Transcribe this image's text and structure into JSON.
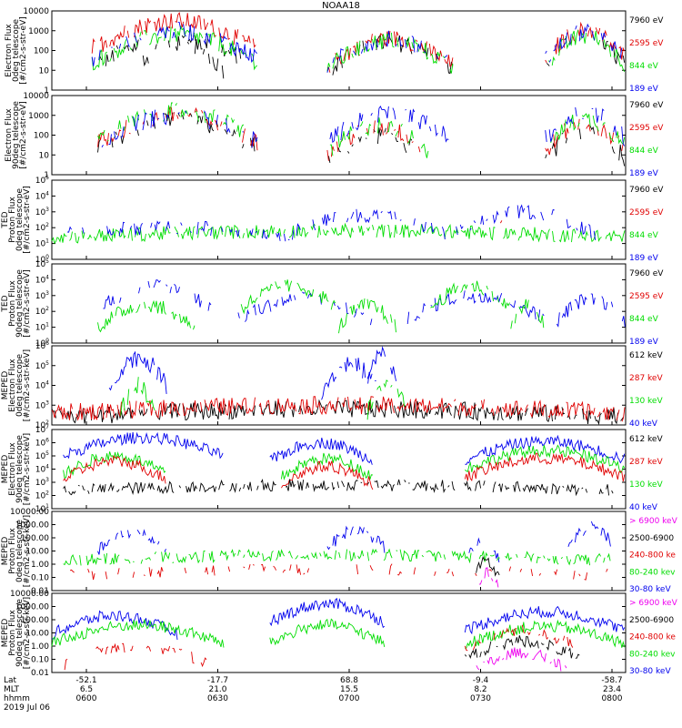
{
  "title": "NOAA18",
  "colors": {
    "c0": "#000000",
    "c1": "#e00000",
    "c2": "#00dd00",
    "c3": "#0000ee",
    "c4": "#ee00ee"
  },
  "chart_data": {
    "type": "line",
    "x_range": [
      "2019-07-06 06:00",
      "2019-07-06 08:00"
    ],
    "x_tick_times": [
      "0600",
      "0630",
      "0700",
      "0730",
      "0800"
    ],
    "panels": [
      {
        "id": "p1",
        "ylabel": [
          "Electron Flux",
          "0deg telescope",
          "[#/cm2-s-str-eV]"
        ],
        "yscale": "log",
        "ylim": [
          1,
          10000
        ],
        "yticks": [
          "10000",
          "1000",
          "100",
          "10",
          "1"
        ],
        "legend": [
          {
            "label": "7960 eV",
            "color": "c0"
          },
          {
            "label": "2595 eV",
            "color": "c1"
          },
          {
            "label": "844 eV",
            "color": "c2"
          },
          {
            "label": "189 eV",
            "color": "c3"
          }
        ],
        "series": [
          {
            "color": "c0",
            "segments": [
              [
                0.07,
                0.36,
                1.8
              ],
              [
                0.14,
                0.3,
                1.6
              ],
              [
                0.48,
                0.7,
                1.6
              ],
              [
                0.86,
                1.0,
                1.8
              ]
            ],
            "dens": 0.5
          },
          {
            "color": "c1",
            "segments": [
              [
                0.07,
                0.36,
                2.7
              ],
              [
                0.48,
                0.7,
                1.8
              ],
              [
                0.86,
                1.0,
                2.2
              ]
            ],
            "dens": 0.8
          },
          {
            "color": "c2",
            "segments": [
              [
                0.07,
                0.36,
                2.0
              ],
              [
                0.48,
                0.7,
                1.7
              ],
              [
                0.86,
                1.0,
                1.9
              ]
            ],
            "dens": 0.8
          },
          {
            "color": "c3",
            "segments": [
              [
                0.07,
                0.36,
                2.2
              ],
              [
                0.48,
                0.7,
                1.8
              ],
              [
                0.86,
                1.0,
                2.1
              ]
            ],
            "dens": 0.7
          }
        ]
      },
      {
        "id": "p2",
        "ylabel": [
          "Electron Flux",
          "90deg telescope",
          "[#/cm2-s-str-eV]"
        ],
        "yscale": "log",
        "ylim": [
          1,
          10000
        ],
        "yticks": [
          "10000",
          "1000",
          "100",
          "10",
          "1"
        ],
        "legend": [
          {
            "label": "7960 eV",
            "color": "c0"
          },
          {
            "label": "2595 eV",
            "color": "c1"
          },
          {
            "label": "844 eV",
            "color": "c2"
          },
          {
            "label": "189 eV",
            "color": "c3"
          }
        ],
        "series": [
          {
            "color": "c0",
            "segments": [
              [
                0.08,
                0.36,
                1.9
              ],
              [
                0.48,
                0.66,
                1.2
              ],
              [
                0.86,
                1.0,
                1.4
              ]
            ],
            "dens": 0.6
          },
          {
            "color": "c1",
            "segments": [
              [
                0.08,
                0.36,
                2.2
              ],
              [
                0.48,
                0.66,
                1.6
              ],
              [
                0.86,
                1.0,
                1.8
              ]
            ],
            "dens": 0.7
          },
          {
            "color": "c2",
            "segments": [
              [
                0.08,
                0.36,
                2.4
              ],
              [
                0.48,
                0.66,
                1.7
              ],
              [
                0.86,
                1.0,
                2.0
              ]
            ],
            "dens": 0.7
          },
          {
            "color": "c3",
            "segments": [
              [
                0.08,
                0.36,
                2.2
              ],
              [
                0.48,
                0.7,
                2.3
              ],
              [
                0.86,
                1.0,
                2.4
              ]
            ],
            "dens": 0.6
          }
        ]
      },
      {
        "id": "p3",
        "ylabel": [
          "TED",
          "Proton Flux",
          "0deg telescope",
          "[#/cm2-s-str-eV]"
        ],
        "yscale": "log",
        "ylim": [
          1,
          100000
        ],
        "yticks": [
          "10^5",
          "10^4",
          "10^3",
          "10^2",
          "10^1",
          "10^0"
        ],
        "legend": [
          {
            "label": "7960 eV",
            "color": "c0"
          },
          {
            "label": "2595 eV",
            "color": "c1"
          },
          {
            "label": "844 eV",
            "color": "c2"
          },
          {
            "label": "189 eV",
            "color": "c3"
          }
        ],
        "series": [
          {
            "color": "c2",
            "segments": [
              [
                0.0,
                1.0,
                1.4
              ]
            ],
            "dens": 0.9
          },
          {
            "color": "c3",
            "segments": [
              [
                0.02,
                0.4,
                1.6
              ],
              [
                0.4,
                0.7,
                2.0
              ],
              [
                0.7,
                0.95,
                2.2
              ]
            ],
            "dens": 0.6
          },
          {
            "color": "c1",
            "segments": [
              [
                0.77,
                0.84,
                1.8
              ]
            ],
            "dens": 0.2
          }
        ]
      },
      {
        "id": "p4",
        "ylabel": [
          "TED",
          "Proton Flux",
          "90deg telescope",
          "[#/cm2-s-str-eV]"
        ],
        "yscale": "log",
        "ylim": [
          1,
          100000
        ],
        "yticks": [
          "10^5",
          "10^4",
          "10^3",
          "10^2",
          "10^1",
          "10^0"
        ],
        "legend": [
          {
            "label": "7960 eV",
            "color": "c0"
          },
          {
            "label": "2595 eV",
            "color": "c1"
          },
          {
            "label": "844 eV",
            "color": "c2"
          },
          {
            "label": "189 eV",
            "color": "c3"
          }
        ],
        "series": [
          {
            "color": "c3",
            "segments": [
              [
                0.08,
                0.28,
                2.8
              ],
              [
                0.32,
                0.56,
                2.0
              ],
              [
                0.62,
                0.86,
                2.2
              ],
              [
                0.88,
                1.0,
                2.0
              ]
            ],
            "dens": 0.7
          },
          {
            "color": "c2",
            "segments": [
              [
                0.08,
                0.25,
                1.6
              ],
              [
                0.33,
                0.5,
                2.8
              ],
              [
                0.5,
                0.6,
                1.6
              ],
              [
                0.66,
                0.8,
                2.8
              ],
              [
                0.8,
                0.86,
                1.6
              ]
            ],
            "dens": 0.8
          }
        ]
      },
      {
        "id": "p5",
        "ylabel": [
          "MEPED",
          "Electron Flux",
          "0deg telescope",
          "[#/cm2-s-str-keV]"
        ],
        "yscale": "log",
        "ylim": [
          100,
          1000000
        ],
        "yticks": [
          "10^6",
          "10^5",
          "10^4",
          "10^3",
          "10^2"
        ],
        "legend": [
          {
            "label": "612 keV",
            "color": "c0"
          },
          {
            "label": "287 keV",
            "color": "c1"
          },
          {
            "label": "130 keV",
            "color": "c2"
          },
          {
            "label": "40 keV",
            "color": "c3"
          }
        ],
        "series": [
          {
            "color": "c0",
            "segments": [
              [
                0.0,
                1.0,
                2.4
              ]
            ],
            "dens": 0.9
          },
          {
            "color": "c1",
            "segments": [
              [
                0.0,
                1.0,
                2.6
              ]
            ],
            "dens": 0.9
          },
          {
            "color": "c2",
            "segments": [
              [
                0.12,
                0.18,
                3.2
              ],
              [
                0.55,
                0.62,
                3.2
              ]
            ],
            "dens": 0.8
          },
          {
            "color": "c3",
            "segments": [
              [
                0.1,
                0.2,
                4.6
              ],
              [
                0.47,
                0.57,
                4.3
              ],
              [
                0.55,
                0.6,
                4.8
              ]
            ],
            "dens": 0.9
          }
        ]
      },
      {
        "id": "p6",
        "ylabel": [
          "MEPED",
          "Electron Flux",
          "90deg telescope",
          "[#/cm2-s-str-keV]"
        ],
        "yscale": "log",
        "ylim": [
          10,
          10000000
        ],
        "yticks": [
          "10^7",
          "10^6",
          "10^5",
          "10^4",
          "10^3",
          "10^2",
          "10^1"
        ],
        "legend": [
          {
            "label": "612 keV",
            "color": "c0"
          },
          {
            "label": "287 keV",
            "color": "c1"
          },
          {
            "label": "130 keV",
            "color": "c2"
          },
          {
            "label": "40 keV",
            "color": "c3"
          }
        ],
        "series": [
          {
            "color": "c3",
            "segments": [
              [
                0.02,
                0.3,
                5.6
              ],
              [
                0.38,
                0.56,
                5.2
              ],
              [
                0.72,
                1.0,
                5.3
              ]
            ],
            "dens": 1.0
          },
          {
            "color": "c2",
            "segments": [
              [
                0.02,
                0.2,
                4.2
              ],
              [
                0.4,
                0.56,
                4.0
              ],
              [
                0.72,
                1.0,
                4.6
              ]
            ],
            "dens": 1.0
          },
          {
            "color": "c1",
            "segments": [
              [
                0.02,
                0.2,
                3.8
              ],
              [
                0.4,
                0.56,
                3.4
              ],
              [
                0.72,
                1.0,
                4.0
              ]
            ],
            "dens": 1.0
          },
          {
            "color": "c0",
            "segments": [
              [
                0.02,
                0.98,
                2.4
              ]
            ],
            "dens": 0.8
          }
        ]
      },
      {
        "id": "p7",
        "ylabel": [
          "MEPED",
          "Proton Flux",
          "0deg telescope",
          "[#/cm2-s-str-keV]"
        ],
        "yscale": "log",
        "ylim": [
          0.01,
          10000
        ],
        "yticks": [
          "10000.00",
          "1000.00",
          "100.00",
          "10.00",
          "1.00",
          "0.10",
          "0.01"
        ],
        "legend": [
          {
            "label": "> 6900 keV",
            "color": "c4"
          },
          {
            "label": "2500-6900",
            "color": "c0"
          },
          {
            "label": "240-800 ke",
            "color": "c1"
          },
          {
            "label": "80-240 kev",
            "color": "c2"
          },
          {
            "label": "30-80 keV",
            "color": "c3"
          }
        ],
        "series": [
          {
            "color": "c3",
            "segments": [
              [
                0.08,
                0.2,
                1.6
              ],
              [
                0.48,
                0.58,
                1.8
              ],
              [
                0.72,
                0.78,
                0.8
              ],
              [
                0.9,
                0.98,
                2.0
              ]
            ],
            "dens": 0.7
          },
          {
            "color": "c2",
            "segments": [
              [
                0.02,
                0.98,
                0.3
              ]
            ],
            "dens": 0.8
          },
          {
            "color": "c1",
            "segments": [
              [
                0.02,
                0.98,
                -0.8
              ]
            ],
            "dens": 0.4
          },
          {
            "color": "c0",
            "segments": [
              [
                0.73,
                0.78,
                -0.5
              ]
            ],
            "dens": 0.9
          },
          {
            "color": "c4",
            "segments": [
              [
                0.74,
                0.78,
                -1.4
              ]
            ],
            "dens": 0.9
          }
        ]
      },
      {
        "id": "p8",
        "ylabel": [
          "MEPED",
          "Proton Flux",
          "90deg telescope",
          "[#/cm2-s-str-keV]"
        ],
        "yscale": "log",
        "ylim": [
          0.01,
          10000
        ],
        "yticks": [
          "10000.00",
          "1000.00",
          "100.00",
          "10.00",
          "1.00",
          "0.10",
          "0.01"
        ],
        "legend": [
          {
            "label": "> 6900 keV",
            "color": "c4"
          },
          {
            "label": "2500-6900",
            "color": "c0"
          },
          {
            "label": "240-800 ke",
            "color": "c1"
          },
          {
            "label": "80-240 kev",
            "color": "c2"
          },
          {
            "label": "30-80 keV",
            "color": "c3"
          }
        ],
        "series": [
          {
            "color": "c3",
            "segments": [
              [
                0.0,
                0.22,
                1.5
              ],
              [
                0.38,
                0.58,
                2.4
              ],
              [
                0.72,
                1.0,
                1.8
              ]
            ],
            "dens": 1.0
          },
          {
            "color": "c2",
            "segments": [
              [
                0.0,
                0.3,
                0.8
              ],
              [
                0.38,
                0.58,
                0.8
              ],
              [
                0.72,
                1.0,
                0.7
              ]
            ],
            "dens": 1.0
          },
          {
            "color": "c1",
            "segments": [
              [
                0.02,
                0.28,
                -0.8
              ],
              [
                0.72,
                0.92,
                0.4
              ]
            ],
            "dens": 0.6
          },
          {
            "color": "c0",
            "segments": [
              [
                0.72,
                0.92,
                -0.4
              ]
            ],
            "dens": 0.8
          },
          {
            "color": "c4",
            "segments": [
              [
                0.74,
                0.9,
                -1.3
              ]
            ],
            "dens": 0.8
          }
        ]
      }
    ],
    "x_axis": {
      "row_labels": [
        "Lat",
        "MLT",
        "hhmm"
      ],
      "ticks": [
        {
          "lat": "-52.1",
          "mlt": "6.5",
          "time": "0600"
        },
        {
          "lat": "-17.7",
          "mlt": "21.0",
          "time": "0630"
        },
        {
          "lat": "68.8",
          "mlt": "15.5",
          "time": "0700"
        },
        {
          "lat": "-9.4",
          "mlt": "8.2",
          "time": "0730"
        },
        {
          "lat": "-58.7",
          "mlt": "23.4",
          "time": "0800"
        }
      ],
      "date_label": "2019 Jul 06"
    }
  }
}
